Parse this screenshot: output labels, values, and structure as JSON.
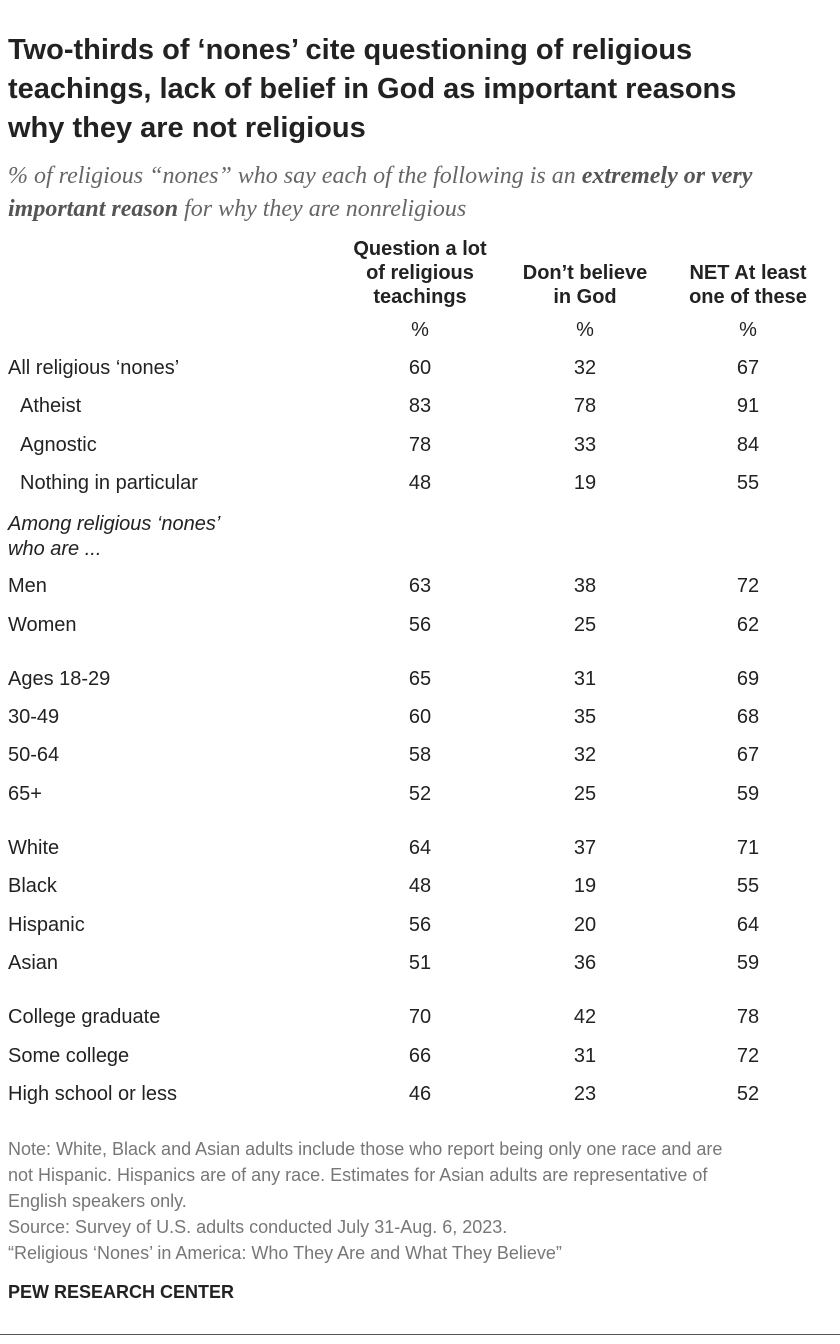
{
  "header": {
    "title_lines": [
      "Two-thirds of ‘nones’ cite questioning of religious",
      "teachings, lack of belief in God as important reasons",
      "why they are not religious"
    ],
    "subtitle": [
      "% of religious “nones” who say each of the following is an ",
      "extremely or very important reason",
      " for why they are nonreligious"
    ]
  },
  "table": {
    "columns": [
      {
        "lines": [
          "Question a lot",
          "of religious",
          "teachings"
        ],
        "unit": "%"
      },
      {
        "lines": [
          "Don’t believe",
          "in God"
        ],
        "unit": "%"
      },
      {
        "lines": [
          "NET At least",
          "one of these"
        ],
        "unit": "%"
      }
    ],
    "groups": [
      {
        "rows": [
          [
            "All religious ‘nones’",
            60,
            32,
            67
          ],
          [
            "Atheist",
            83,
            78,
            91
          ],
          [
            "Agnostic",
            78,
            33,
            84
          ],
          [
            "Nothing in particular",
            48,
            19,
            55
          ]
        ]
      },
      {
        "heading": [
          "Among religious ‘nones’",
          "who are ..."
        ],
        "rows": [
          [
            "Men",
            63,
            38,
            72
          ],
          [
            "Women",
            56,
            25,
            62
          ]
        ]
      },
      {
        "rows": [
          [
            "Ages 18-29",
            65,
            31,
            69
          ],
          [
            "30-49",
            60,
            35,
            68
          ],
          [
            "50-64",
            58,
            32,
            67
          ],
          [
            "65+",
            52,
            25,
            59
          ]
        ]
      },
      {
        "rows": [
          [
            "White",
            64,
            37,
            71
          ],
          [
            "Black",
            48,
            19,
            55
          ],
          [
            "Hispanic",
            56,
            20,
            64
          ],
          [
            "Asian",
            51,
            36,
            59
          ]
        ]
      },
      {
        "rows": [
          [
            "College graduate",
            70,
            42,
            78
          ],
          [
            "Some college",
            66,
            31,
            72
          ],
          [
            "High school or less",
            46,
            23,
            52
          ]
        ]
      }
    ]
  },
  "footer": {
    "note_lines": [
      "Note: White, Black and Asian adults include those who report being only one race and are",
      "not Hispanic. Hispanics are of any race. Estimates for Asian adults are representative of",
      "English speakers only."
    ],
    "source": "Source: Survey of U.S. adults conducted July 31-Aug. 6, 2023.",
    "report": "“Religious ‘Nones’ in America: Who They Are and What They Believe”",
    "brand": "PEW RESEARCH CENTER"
  }
}
